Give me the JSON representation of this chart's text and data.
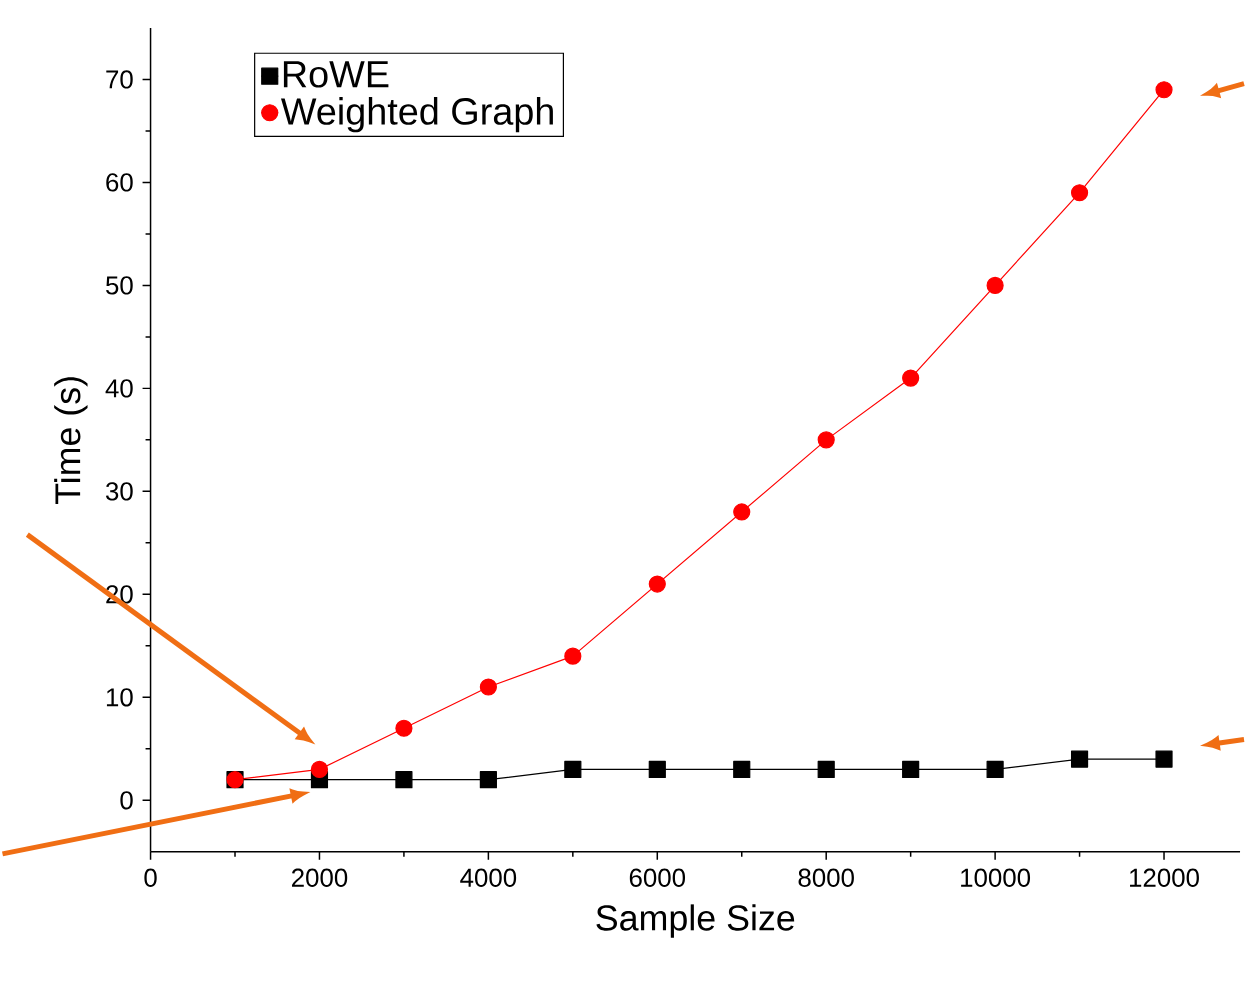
{
  "chart_data": {
    "type": "line",
    "xlabel": "Sample Size",
    "ylabel": "Time (s)",
    "x": [
      1000,
      2000,
      3000,
      4000,
      5000,
      6000,
      7000,
      8000,
      9000,
      10000,
      11000,
      12000
    ],
    "series": [
      {
        "name": "RoWE",
        "color": "#000000",
        "marker": "square",
        "values": [
          2,
          2,
          2,
          2,
          3,
          3,
          3,
          3,
          3,
          3,
          4,
          4
        ]
      },
      {
        "name": "Weighted Graph",
        "color": "#ff0000",
        "marker": "circle",
        "values": [
          2,
          3,
          7,
          11,
          14,
          21,
          28,
          35,
          41,
          50,
          59,
          69
        ]
      }
    ],
    "xlim": [
      0,
      12900
    ],
    "ylim": [
      -5,
      75
    ],
    "xticks": [
      0,
      2000,
      4000,
      6000,
      8000,
      10000,
      12000
    ],
    "yticks": [
      0,
      10,
      20,
      30,
      40,
      50,
      60,
      70
    ],
    "grid": false,
    "legend": "top left",
    "line_style": "solid"
  }
}
